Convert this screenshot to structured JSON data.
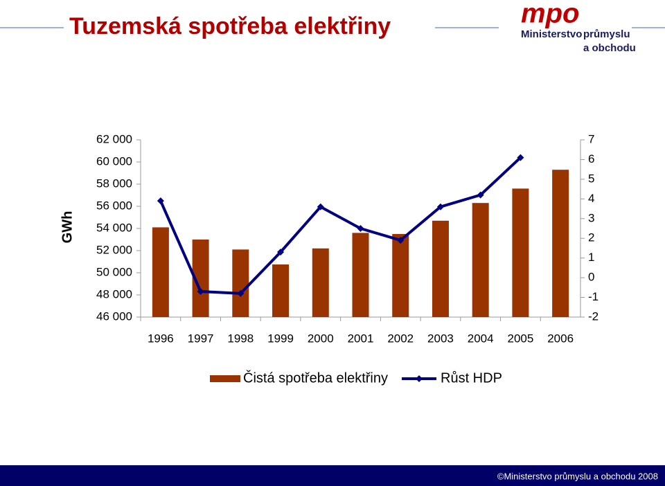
{
  "header": {
    "title": "Tuzemská spotřeba elektřiny"
  },
  "logo": {
    "mark": "mpo",
    "line1": "Ministerstvo",
    "line2": "průmyslu",
    "line3": "a obchodu"
  },
  "chart_data": {
    "type": "bar-line",
    "y_label": "GWh",
    "categories": [
      "1996",
      "1997",
      "1998",
      "1999",
      "2000",
      "2001",
      "2002",
      "2003",
      "2004",
      "2005",
      "2006"
    ],
    "series": [
      {
        "name": "Čistá spotřeba elektřiny",
        "type": "bar",
        "color": "#993300",
        "values": [
          54100,
          53000,
          52100,
          50750,
          52200,
          53600,
          53500,
          54700,
          56300,
          57600,
          59300
        ]
      },
      {
        "name": "Růst HDP",
        "type": "line",
        "axis": "y2",
        "color": "#000080",
        "values": [
          3.9,
          -0.7,
          -0.8,
          1.3,
          3.6,
          2.5,
          1.9,
          3.6,
          4.2,
          6.1,
          null
        ]
      }
    ],
    "ylim": [
      46000,
      62000
    ],
    "yticks": [
      {
        "value": 46000,
        "label": "46 000"
      },
      {
        "value": 48000,
        "label": "48 000"
      },
      {
        "value": 50000,
        "label": "50 000"
      },
      {
        "value": 52000,
        "label": "52 000"
      },
      {
        "value": 54000,
        "label": "54 000"
      },
      {
        "value": 56000,
        "label": "56 000"
      },
      {
        "value": 58000,
        "label": "58 000"
      },
      {
        "value": 60000,
        "label": "60 000"
      },
      {
        "value": 62000,
        "label": "62 000"
      }
    ],
    "y2lim": [
      -2,
      7
    ],
    "y2ticks": [
      -2,
      -1,
      0,
      1,
      2,
      3,
      4,
      5,
      6,
      7
    ]
  },
  "footer": {
    "text": "©Ministerstvo průmyslu a obchodu 2008"
  }
}
